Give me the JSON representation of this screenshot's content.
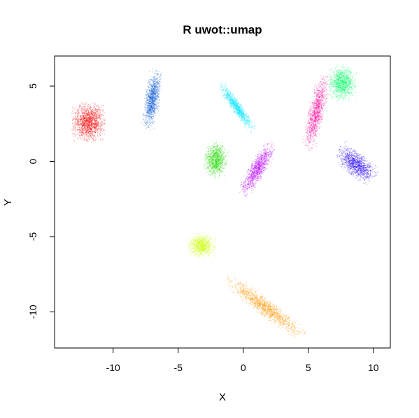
{
  "chart_data": {
    "type": "scatter",
    "title": "R uwot::umap",
    "xlabel": "X",
    "ylabel": "Y",
    "xlim": [
      -14.5,
      11.3
    ],
    "ylim": [
      -12.4,
      7.0
    ],
    "xticks": [
      -10,
      -5,
      0,
      5,
      10
    ],
    "yticks": [
      -10,
      -5,
      0,
      5
    ],
    "xtick_labels": [
      "-10",
      "-5",
      "0",
      "5",
      "10"
    ],
    "ytick_labels": [
      "-10",
      "-5",
      "0",
      "5"
    ],
    "grid": false,
    "legend": false,
    "clusters": [
      {
        "color": "#ff0000",
        "center": [
          -11.9,
          2.6
        ],
        "spread": [
          1.3,
          1.3
        ],
        "angle": 0,
        "count": 1400
      },
      {
        "color": "#0b5ad8",
        "center": [
          -7.0,
          4.1
        ],
        "spread": [
          0.6,
          2.0
        ],
        "angle": 10,
        "count": 1100
      },
      {
        "color": "#00e5ff",
        "center": [
          -0.5,
          3.6
        ],
        "spread": [
          0.4,
          2.0
        ],
        "angle": -40,
        "count": 1000
      },
      {
        "color": "#22dd00",
        "center": [
          -2.1,
          0.1
        ],
        "spread": [
          0.9,
          1.2
        ],
        "angle": 10,
        "count": 1000
      },
      {
        "color": "#bb00ff",
        "center": [
          1.1,
          -0.5
        ],
        "spread": [
          0.6,
          2.1
        ],
        "angle": 35,
        "count": 1100
      },
      {
        "color": "#ff0099",
        "center": [
          5.6,
          3.2
        ],
        "spread": [
          0.6,
          2.6
        ],
        "angle": 15,
        "count": 1100
      },
      {
        "color": "#00ff66",
        "center": [
          7.6,
          5.2
        ],
        "spread": [
          1.1,
          1.2
        ],
        "angle": 0,
        "count": 1100
      },
      {
        "color": "#2200ff",
        "center": [
          8.7,
          -0.2
        ],
        "spread": [
          0.8,
          1.7
        ],
        "angle": -55,
        "count": 1100
      },
      {
        "color": "#ccff00",
        "center": [
          -3.2,
          -5.6
        ],
        "spread": [
          1.1,
          0.8
        ],
        "angle": 0,
        "count": 900
      },
      {
        "color": "#ff9900",
        "center": [
          1.7,
          -9.7
        ],
        "spread": [
          0.6,
          3.6
        ],
        "angle": -57,
        "count": 1400
      }
    ]
  }
}
